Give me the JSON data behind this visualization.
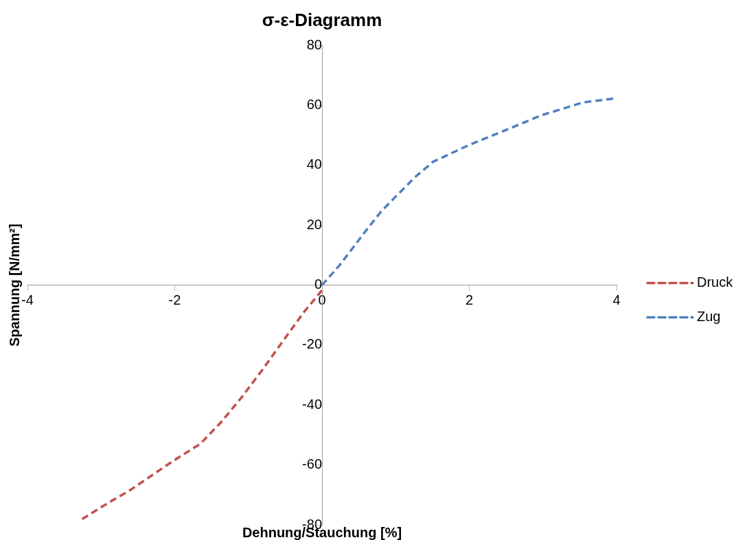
{
  "chart_data": {
    "type": "line",
    "title": "σ-ε-Diagramm",
    "xlabel": "Dehnung/Stauchung [%]",
    "ylabel": "Spannung [N/mm²]",
    "xlim": [
      -4,
      4
    ],
    "xticks": [
      -4,
      -2,
      0,
      2,
      4
    ],
    "ylim": [
      -80,
      80
    ],
    "yticks": [
      -80,
      -60,
      -40,
      -20,
      0,
      20,
      40,
      60,
      80
    ],
    "grid": false,
    "legend": "right",
    "line_style": "dashed",
    "marker": "none",
    "series": [
      {
        "name": "Druck",
        "color": "#c0504d",
        "x": [
          0,
          -0.24,
          -0.52,
          -0.8,
          -1.09,
          -1.37,
          -1.65,
          -2.03,
          -2.6,
          -2.98,
          -3.26
        ],
        "values": [
          -1.7,
          -8.8,
          -18.3,
          -27.9,
          -37.4,
          -45.7,
          -52.9,
          -58.8,
          -68.3,
          -73.8,
          -78.1
        ]
      },
      {
        "name": "Zug",
        "color": "#4f81bd",
        "x": [
          0,
          0.24,
          0.61,
          0.8,
          0.99,
          1.28,
          1.51,
          1.99,
          2.51,
          2.98,
          3.55,
          4
        ],
        "values": [
          0,
          6.7,
          18.6,
          24.5,
          29.3,
          36.4,
          41.2,
          46.7,
          51.9,
          56.7,
          61,
          62.4
        ]
      }
    ]
  }
}
